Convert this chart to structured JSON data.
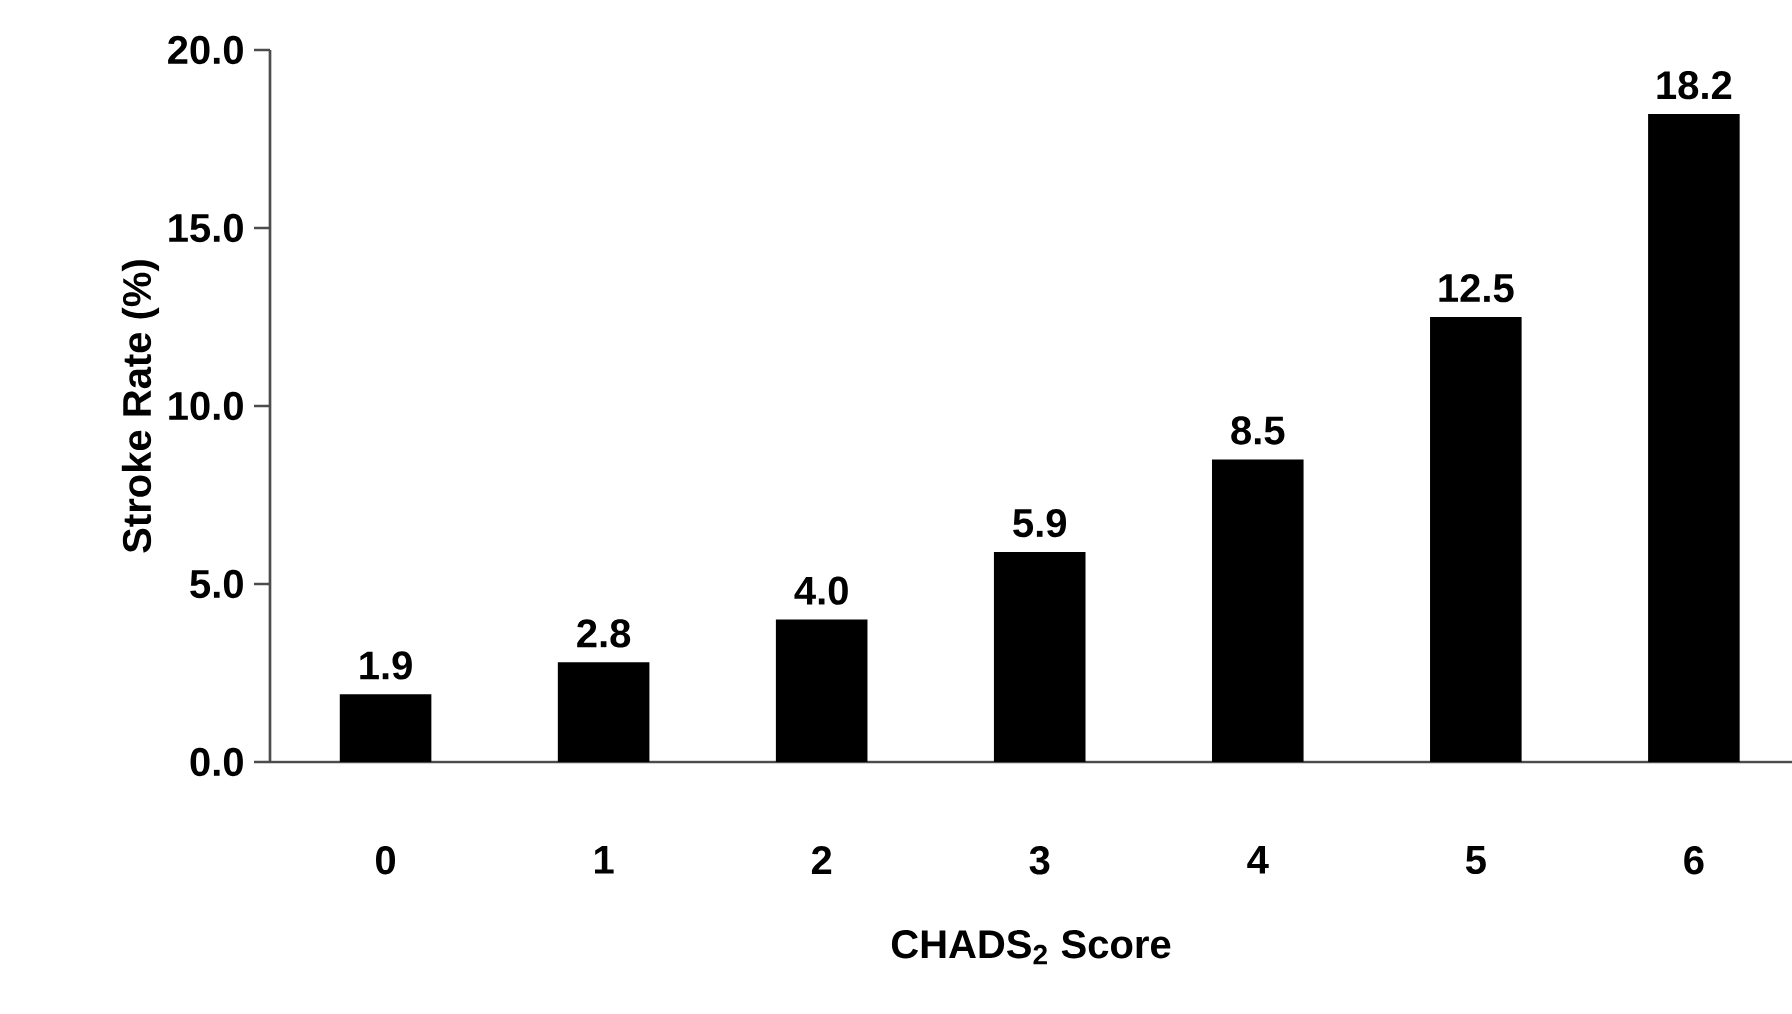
{
  "chart_data": {
    "type": "bar",
    "xlabel": "CHADS$_{2}$ Score",
    "ylabel": "Stroke Rate (%)",
    "categories": [
      "0",
      "1",
      "2",
      "3",
      "4",
      "5",
      "6"
    ],
    "values": [
      1.9,
      2.8,
      4.0,
      5.9,
      8.5,
      12.5,
      18.2
    ],
    "value_labels": [
      "1.9",
      "2.8",
      "4.0",
      "5.9",
      "8.5",
      "12.5",
      "18.2"
    ],
    "color": "#000000",
    "ylim": [
      0,
      20
    ],
    "yticks": [
      {
        "value": 0,
        "label": "0.0"
      },
      {
        "value": 5,
        "label": "5.0"
      },
      {
        "value": 10,
        "label": "10.0"
      },
      {
        "value": 15,
        "label": "15.0"
      },
      {
        "value": 20,
        "label": "20.0"
      }
    ],
    "grid": false
  }
}
